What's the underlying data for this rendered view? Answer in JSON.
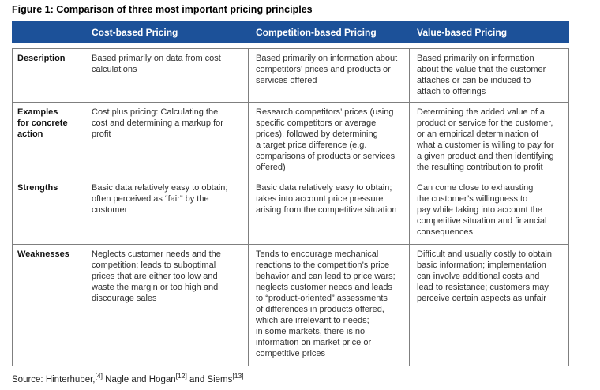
{
  "title": "Figure 1: Comparison of three most important pricing principles",
  "table": {
    "corner": "",
    "headers": [
      "Cost-based Pricing",
      "Competition-based Pricing",
      "Value-based Pricing"
    ],
    "rows": [
      {
        "label": "Description",
        "cells": [
          "Based primarily on data from cost\ncalculations",
          "Based primarily on information about\ncompetitors’ prices and products or\nservices offered",
          "Based primarily on information\nabout the value that the customer\nattaches or can be induced to\nattach to offerings"
        ]
      },
      {
        "label": "Examples\nfor concrete\naction",
        "cells": [
          "Cost plus pricing: Calculating the\ncost and determining a markup for\nprofit",
          "Research competitors’ prices (using\nspecific competitors or average\nprices), followed by determining\na target price difference (e.g.\ncomparisons of products or services\noffered)",
          "Determining the added value of a\nproduct or service for the customer,\nor an empirical determination of\nwhat a customer is willing to pay for\na given product and then identifying\nthe resulting contribution to profit"
        ]
      },
      {
        "label": "Strengths",
        "cells": [
          "Basic data relatively easy to obtain;\noften perceived as “fair” by the\ncustomer",
          "Basic data relatively easy to obtain;\ntakes into account price pressure\narising from the competitive situation",
          "Can come close to exhausting\nthe customer’s willingness to\npay while taking into account the\ncompetitive situation and financial\nconsequences"
        ]
      },
      {
        "label": "Weaknesses",
        "cells": [
          "Neglects customer needs and the\ncompetition; leads to suboptimal\nprices that are either too low and\nwaste the margin or too high and\ndiscourage sales",
          "Tends to encourage mechanical\nreactions to the competition’s price\nbehavior and can lead to price wars;\nneglects customer needs and leads\nto “product-oriented” assessments\nof differences in products offered,\nwhich are irrelevant to needs;\nin some markets, there is no\ninformation on market price or\ncompetitive prices",
          "Difficult and usually costly to obtain\nbasic information; implementation\ncan involve additional costs and\nlead to resistance; customers may\nperceive certain aspects as unfair"
        ]
      }
    ]
  },
  "source": {
    "part1": "Source: Hinterhuber,",
    "ref1": "[4]",
    "part2": " Nagle and Hogan",
    "ref2": "[12]",
    "part3": " and Siems",
    "ref3": "[13]"
  },
  "colors": {
    "header_bg": "#1c5199",
    "table_border": "#7f7f7f"
  }
}
